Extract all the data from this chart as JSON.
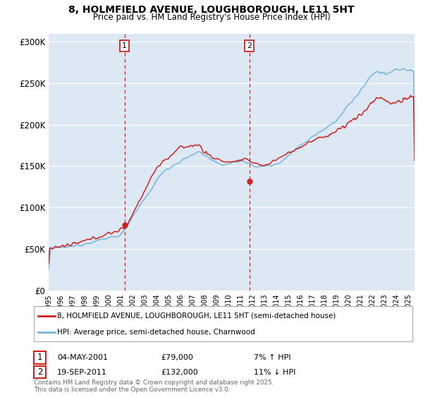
{
  "title_line1": "8, HOLMFIELD AVENUE, LOUGHBOROUGH, LE11 5HT",
  "title_line2": "Price paid vs. HM Land Registry's House Price Index (HPI)",
  "line1_color": "#cc2222",
  "line2_color": "#7ab4d8",
  "sale1_date_label": "04-MAY-2001",
  "sale1_price_label": "£79,000",
  "sale1_hpi_label": "7% ↑ HPI",
  "sale2_date_label": "19-SEP-2011",
  "sale2_price_label": "£132,000",
  "sale2_hpi_label": "11% ↓ HPI",
  "legend_line1": "8, HOLMFIELD AVENUE, LOUGHBOROUGH, LE11 5HT (semi-detached house)",
  "legend_line2": "HPI: Average price, semi-detached house, Charnwood",
  "footer": "Contains HM Land Registry data © Crown copyright and database right 2025.\nThis data is licensed under the Open Government Licence v3.0.",
  "ylim": [
    0,
    310000
  ],
  "yticks": [
    0,
    50000,
    100000,
    150000,
    200000,
    250000,
    300000
  ],
  "ytick_labels": [
    "£0",
    "£50K",
    "£100K",
    "£150K",
    "£200K",
    "£250K",
    "£300K"
  ],
  "sale1_x": 2001.33,
  "sale1_y": 79000,
  "sale2_x": 2011.72,
  "sale2_y": 132000,
  "xmin": 1995,
  "xmax": 2025.5,
  "plot_bg_color": "#dce9f5"
}
